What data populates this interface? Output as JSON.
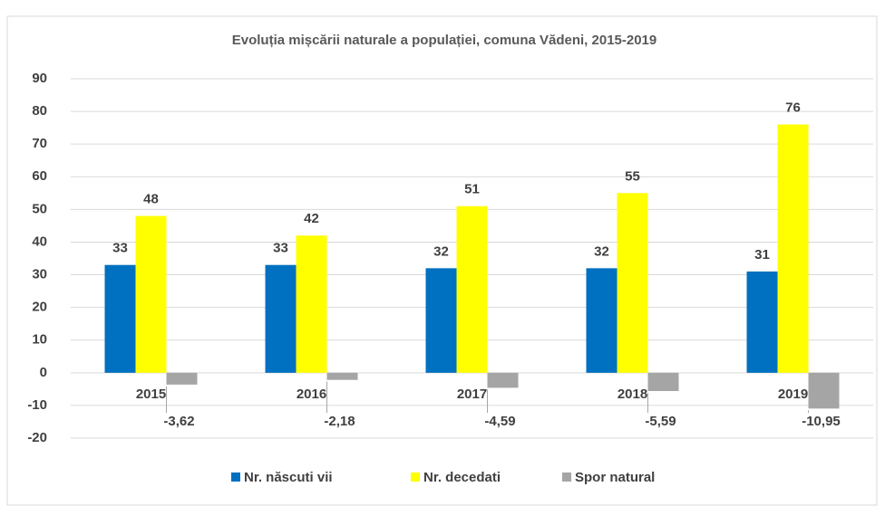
{
  "chart_data": {
    "type": "bar",
    "title": "Evoluția mișcării naturale a populației, comuna Vădeni, 2015-2019",
    "categories": [
      "2015",
      "2016",
      "2017",
      "2018",
      "2019"
    ],
    "series": [
      {
        "name": "Nr. născuti vii",
        "color": "#0070c0",
        "values": [
          33,
          33,
          32,
          32,
          31
        ]
      },
      {
        "name": "Nr. decedati",
        "color": "#ffff00",
        "values": [
          48,
          42,
          51,
          55,
          76
        ]
      },
      {
        "name": "Spor natural",
        "color": "#a5a5a5",
        "values": [
          -3.62,
          -2.18,
          -4.59,
          -5.59,
          -10.95
        ],
        "value_labels": [
          "-3,62",
          "-2,18",
          "-4,59",
          "-5,59",
          "-10,95"
        ]
      }
    ],
    "ylim": [
      -20,
      90
    ],
    "yticks": [
      -20,
      -10,
      0,
      10,
      20,
      30,
      40,
      50,
      60,
      70,
      80,
      90
    ],
    "grid": true,
    "legend": "bottom"
  }
}
